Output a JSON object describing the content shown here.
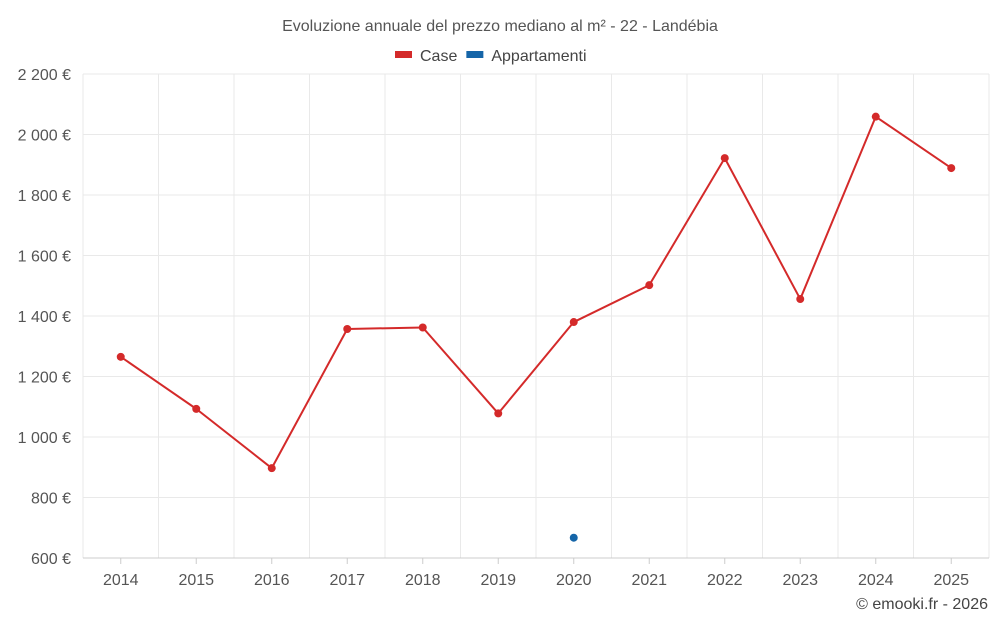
{
  "chart_data": {
    "type": "line",
    "title": "Evoluzione annuale del prezzo mediano al m² - 22 - Landébia",
    "categories": [
      "2014",
      "2015",
      "2016",
      "2017",
      "2018",
      "2019",
      "2020",
      "2021",
      "2022",
      "2023",
      "2024",
      "2025"
    ],
    "y_ticks": [
      "600 €",
      "800 €",
      "1 000 €",
      "1 200 €",
      "1 400 €",
      "1 600 €",
      "1 800 €",
      "2 000 €",
      "2 200 €"
    ],
    "ylim": [
      600,
      2200
    ],
    "y_step": 200,
    "grid": true,
    "legend_position": "top-center",
    "series": [
      {
        "name": "Case",
        "color": "#d42a2a",
        "values": [
          1265,
          1093,
          897,
          1357,
          1362,
          1078,
          1380,
          1502,
          1922,
          1456,
          2059,
          1889
        ]
      },
      {
        "name": "Appartamenti",
        "color": "#1565a8",
        "values": [
          null,
          null,
          null,
          null,
          null,
          null,
          667,
          null,
          null,
          null,
          null,
          null
        ]
      }
    ],
    "credit": "© emooki.fr - 2026"
  }
}
